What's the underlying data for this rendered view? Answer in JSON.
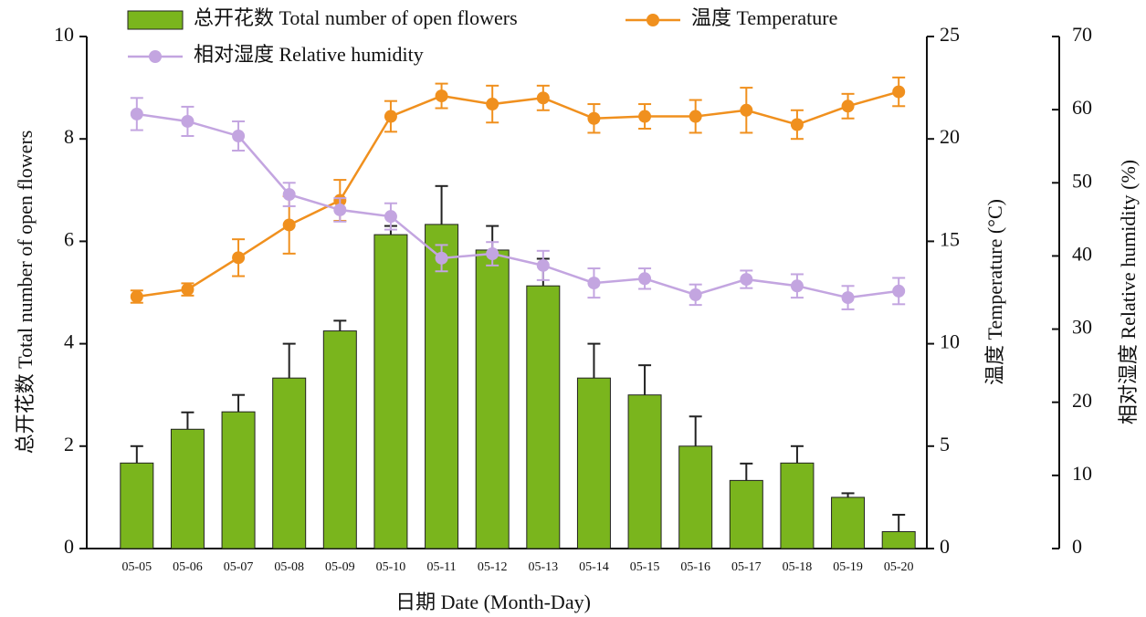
{
  "chart_data": {
    "type": "bar",
    "x_label": "日期 Date (Month-Day)",
    "y_label": "总开花数 Total number of open flowers",
    "y2_label": "温度 Temperature (°C)",
    "y3_label": "相对湿度 Relative humidity (%)",
    "categories": [
      "05-05",
      "05-06",
      "05-07",
      "05-08",
      "05-09",
      "05-10",
      "05-11",
      "05-12",
      "05-13",
      "05-14",
      "05-15",
      "05-16",
      "05-17",
      "05-18",
      "05-19",
      "05-20"
    ],
    "series": [
      {
        "name": "总开花数  Total number of open flowers",
        "type": "bar",
        "color": "#7ab51d",
        "values": [
          1.67,
          2.33,
          2.67,
          3.33,
          4.25,
          6.13,
          6.33,
          5.83,
          5.13,
          3.33,
          3.0,
          2.0,
          1.33,
          1.67,
          1.0,
          0.33
        ],
        "errors": [
          0.33,
          0.33,
          0.33,
          0.67,
          0.2,
          0.17,
          0.75,
          0.47,
          0.53,
          0.67,
          0.58,
          0.58,
          0.33,
          0.33,
          0.08,
          0.33
        ]
      },
      {
        "name": "温度  Temperature",
        "type": "line",
        "axis": "y2",
        "color": "#f0901e",
        "values": [
          12.3,
          12.65,
          14.2,
          15.8,
          17.0,
          21.1,
          22.1,
          21.7,
          22.0,
          21.0,
          21.1,
          21.1,
          21.4,
          20.7,
          21.6,
          22.3
        ],
        "errors": [
          0.3,
          0.3,
          0.9,
          1.4,
          1.0,
          0.75,
          0.6,
          0.9,
          0.6,
          0.7,
          0.6,
          0.8,
          1.1,
          0.7,
          0.6,
          0.7
        ]
      },
      {
        "name": "相对湿度  Relative humidity",
        "type": "line",
        "axis": "y3",
        "color": "#c3a5e0",
        "values": [
          59.4,
          58.4,
          56.4,
          48.4,
          46.3,
          45.4,
          39.7,
          40.3,
          38.7,
          36.3,
          36.9,
          34.7,
          36.8,
          35.9,
          34.3,
          35.2
        ],
        "errors": [
          2.2,
          2.0,
          2.0,
          1.6,
          1.6,
          1.8,
          1.8,
          1.6,
          2.0,
          2.0,
          1.4,
          1.4,
          1.2,
          1.6,
          1.6,
          1.8
        ]
      }
    ],
    "ylim": [
      0,
      10
    ],
    "yticks": [
      0,
      2,
      4,
      6,
      8,
      10
    ],
    "y2lim": [
      0,
      25
    ],
    "y2ticks": [
      0,
      5,
      10,
      15,
      20,
      25
    ],
    "y3lim": [
      0,
      70
    ],
    "y3ticks": [
      0,
      10,
      20,
      30,
      40,
      50,
      60,
      70
    ]
  }
}
